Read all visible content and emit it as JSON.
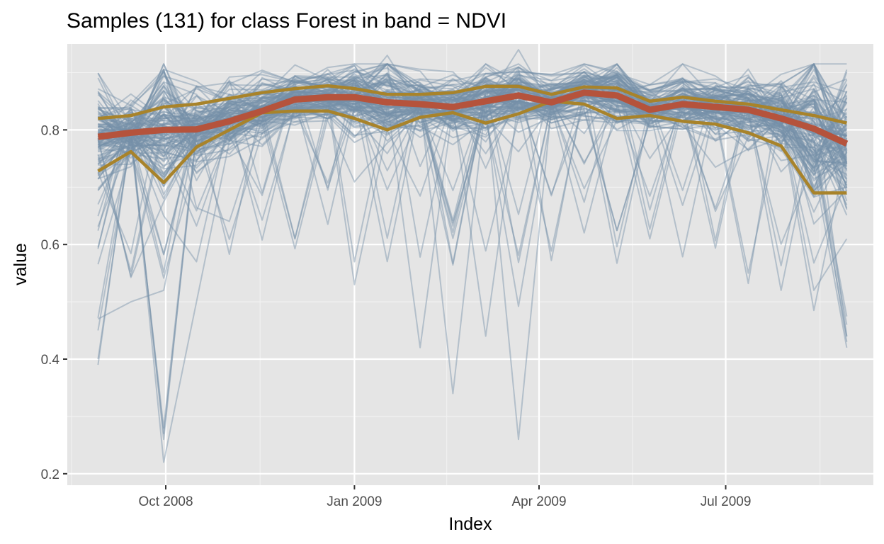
{
  "chart_data": {
    "type": "line",
    "title": "Samples (131) for class Forest in band = NDVI",
    "xlabel": "Index",
    "ylabel": "value",
    "ylim": [
      0.18,
      0.95
    ],
    "xlim": [
      "2008-08-14",
      "2009-09-11"
    ],
    "grid": true,
    "x_tick_labels": [
      {
        "date": "2008-10-01",
        "label": "Oct 2008"
      },
      {
        "date": "2009-01-01",
        "label": "Jan 2009"
      },
      {
        "date": "2009-04-01",
        "label": "Apr 2009"
      },
      {
        "date": "2009-07-01",
        "label": "Jul 2009"
      }
    ],
    "y_ticks": [
      {
        "value": 0.2,
        "label": "0.2"
      },
      {
        "value": 0.4,
        "label": "0.4"
      },
      {
        "value": 0.6,
        "label": "0.6"
      },
      {
        "value": 0.8,
        "label": "0.8"
      }
    ],
    "x": [
      "2008-08-29",
      "2008-09-14",
      "2008-09-30",
      "2008-10-16",
      "2008-11-01",
      "2008-11-17",
      "2008-12-03",
      "2008-12-19",
      "2009-01-01",
      "2009-01-17",
      "2009-02-02",
      "2009-02-18",
      "2009-03-06",
      "2009-03-22",
      "2009-04-07",
      "2009-04-23",
      "2009-05-09",
      "2009-05-25",
      "2009-06-10",
      "2009-06-26",
      "2009-07-12",
      "2009-07-28",
      "2009-08-13",
      "2009-08-29"
    ],
    "summary_series": [
      {
        "role": "median",
        "color": "#b5533c",
        "values": [
          0.788,
          0.795,
          0.8,
          0.801,
          0.815,
          0.833,
          0.853,
          0.857,
          0.857,
          0.848,
          0.845,
          0.84,
          0.85,
          0.86,
          0.848,
          0.865,
          0.86,
          0.835,
          0.845,
          0.84,
          0.835,
          0.82,
          0.802,
          0.776
        ]
      },
      {
        "role": "upper-quantile",
        "color": "#a8832a",
        "values": [
          0.82,
          0.825,
          0.84,
          0.845,
          0.855,
          0.865,
          0.872,
          0.877,
          0.872,
          0.862,
          0.862,
          0.865,
          0.876,
          0.876,
          0.862,
          0.875,
          0.873,
          0.85,
          0.857,
          0.85,
          0.845,
          0.835,
          0.825,
          0.812
        ]
      },
      {
        "role": "lower-quantile",
        "color": "#a8832a",
        "values": [
          0.728,
          0.762,
          0.708,
          0.77,
          0.8,
          0.83,
          0.833,
          0.833,
          0.82,
          0.8,
          0.822,
          0.83,
          0.812,
          0.828,
          0.85,
          0.845,
          0.82,
          0.825,
          0.815,
          0.81,
          0.795,
          0.772,
          0.69,
          0.69
        ]
      }
    ],
    "sample_series_count": 131,
    "sample_series_color": "#7590a8",
    "sample_series_notable": [
      {
        "values": [
          0.39,
          0.8,
          0.26,
          0.8,
          0.82,
          0.84,
          0.85,
          0.85,
          0.85,
          0.84,
          0.84,
          0.84,
          0.85,
          0.85,
          0.84,
          0.86,
          0.85,
          0.83,
          0.84,
          0.83,
          0.83,
          0.81,
          0.78,
          0.43
        ]
      },
      {
        "values": [
          0.4,
          0.79,
          0.27,
          0.79,
          0.81,
          0.83,
          0.84,
          0.84,
          0.85,
          0.83,
          0.83,
          0.83,
          0.84,
          0.84,
          0.83,
          0.85,
          0.85,
          0.82,
          0.83,
          0.83,
          0.82,
          0.8,
          0.76,
          0.44
        ]
      },
      {
        "values": [
          0.45,
          0.78,
          0.28,
          0.8,
          0.82,
          0.84,
          0.86,
          0.86,
          0.86,
          0.85,
          0.85,
          0.84,
          0.85,
          0.86,
          0.84,
          0.86,
          0.86,
          0.83,
          0.84,
          0.84,
          0.83,
          0.81,
          0.77,
          0.46
        ]
      },
      {
        "values": [
          0.8,
          0.8,
          0.22,
          0.5,
          0.78,
          0.83,
          0.85,
          0.85,
          0.84,
          0.84,
          0.83,
          0.83,
          0.84,
          0.85,
          0.84,
          0.86,
          0.85,
          0.83,
          0.84,
          0.83,
          0.82,
          0.8,
          0.79,
          0.78
        ]
      },
      {
        "values": [
          0.81,
          0.8,
          0.8,
          0.81,
          0.82,
          0.84,
          0.85,
          0.85,
          0.53,
          0.8,
          0.84,
          0.84,
          0.85,
          0.26,
          0.84,
          0.86,
          0.85,
          0.84,
          0.84,
          0.84,
          0.83,
          0.82,
          0.8,
          0.78
        ]
      },
      {
        "values": [
          0.82,
          0.81,
          0.82,
          0.82,
          0.83,
          0.84,
          0.86,
          0.86,
          0.86,
          0.85,
          0.42,
          0.84,
          0.85,
          0.86,
          0.85,
          0.86,
          0.86,
          0.84,
          0.84,
          0.84,
          0.84,
          0.82,
          0.81,
          0.79
        ]
      },
      {
        "values": [
          0.83,
          0.82,
          0.82,
          0.83,
          0.84,
          0.85,
          0.86,
          0.86,
          0.86,
          0.85,
          0.85,
          0.34,
          0.85,
          0.86,
          0.85,
          0.86,
          0.86,
          0.84,
          0.84,
          0.84,
          0.84,
          0.83,
          0.81,
          0.8
        ]
      },
      {
        "values": [
          0.8,
          0.8,
          0.8,
          0.81,
          0.82,
          0.84,
          0.86,
          0.86,
          0.57,
          0.84,
          0.84,
          0.84,
          0.44,
          0.85,
          0.84,
          0.85,
          0.85,
          0.83,
          0.84,
          0.83,
          0.83,
          0.82,
          0.8,
          0.79
        ]
      },
      {
        "values": [
          0.47,
          0.5,
          0.52,
          0.8,
          0.82,
          0.84,
          0.85,
          0.85,
          0.85,
          0.84,
          0.84,
          0.84,
          0.85,
          0.85,
          0.84,
          0.86,
          0.85,
          0.83,
          0.84,
          0.83,
          0.55,
          0.82,
          0.8,
          0.79
        ]
      },
      {
        "values": [
          0.81,
          0.81,
          0.81,
          0.81,
          0.82,
          0.84,
          0.61,
          0.85,
          0.85,
          0.84,
          0.84,
          0.84,
          0.85,
          0.85,
          0.84,
          0.86,
          0.85,
          0.61,
          0.84,
          0.83,
          0.83,
          0.52,
          0.8,
          0.79
        ]
      },
      {
        "values": [
          0.8,
          0.8,
          0.8,
          0.81,
          0.82,
          0.84,
          0.85,
          0.85,
          0.86,
          0.93,
          0.84,
          0.84,
          0.85,
          0.94,
          0.84,
          0.86,
          0.85,
          0.83,
          0.84,
          0.83,
          0.83,
          0.82,
          0.8,
          0.79
        ]
      },
      {
        "values": [
          0.67,
          0.8,
          0.65,
          0.57,
          0.82,
          0.84,
          0.85,
          0.85,
          0.85,
          0.84,
          0.84,
          0.84,
          0.85,
          0.85,
          0.84,
          0.86,
          0.85,
          0.83,
          0.84,
          0.83,
          0.83,
          0.82,
          0.52,
          0.61
        ]
      }
    ]
  }
}
